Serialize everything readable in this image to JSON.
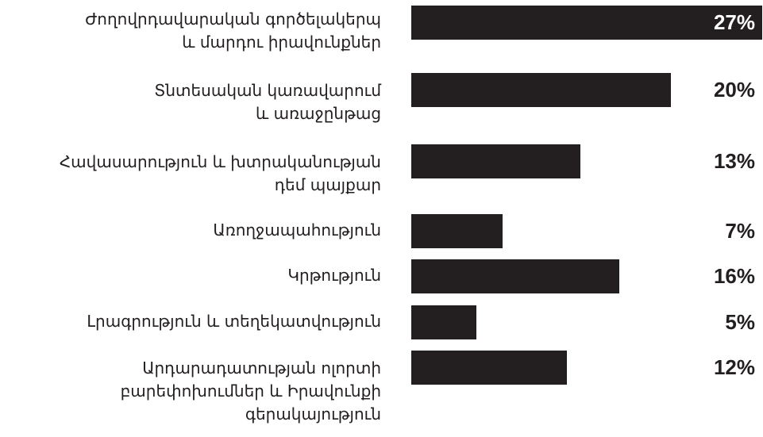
{
  "chart_data": {
    "type": "bar",
    "orientation": "horizontal",
    "categories": [
      "Ժողովրդավարական գործելակերպ\nև մարդու իրավունքներ",
      "Տնտեսական կառավարում\nև առաջընթաց",
      "Հավասարություն և խտրականության\nդեմ պայքար",
      "Առողջապահություն",
      "Կրթություն",
      "Լրագրություն և տեղեկատվություն",
      "Արդարադատության ոլորտի\nբարեփոխումներ և Իրավունքի\nգերակայություն"
    ],
    "values": [
      27,
      20,
      13,
      7,
      16,
      5,
      12
    ],
    "value_labels": [
      "27%",
      "20%",
      "13%",
      "7%",
      "16%",
      "5%",
      "12%"
    ],
    "bar_color": "#231f20",
    "xlim": [
      0,
      27
    ],
    "grid": false,
    "legend": "none"
  }
}
